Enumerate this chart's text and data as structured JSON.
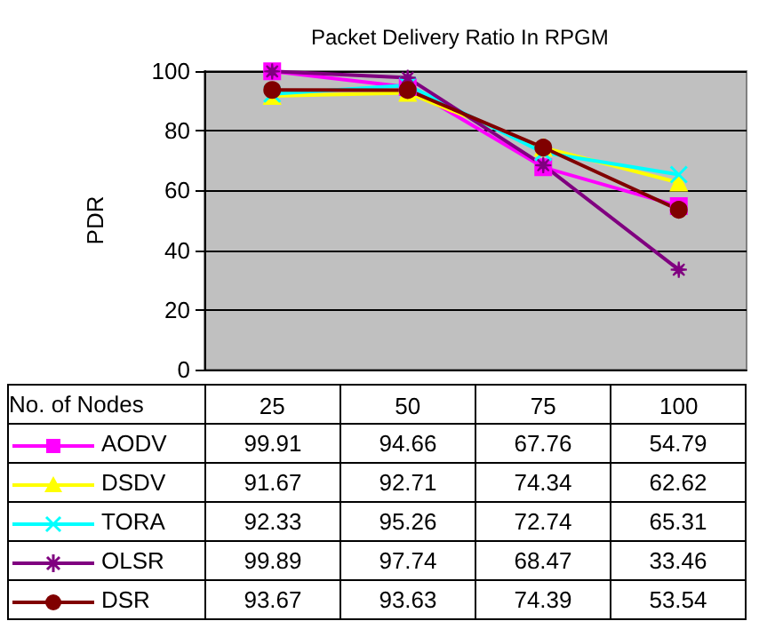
{
  "chart_data": {
    "type": "line",
    "title": "Packet Delivery Ratio In RPGM",
    "ylabel": "PDR",
    "legend_title": "No. of Nodes",
    "categories": [
      "25",
      "50",
      "75",
      "100"
    ],
    "series": [
      {
        "name": "AODV",
        "color": "#ff00ff",
        "marker": "square",
        "values": [
          99.91,
          94.66,
          67.76,
          54.79
        ]
      },
      {
        "name": "DSDV",
        "color": "#ffff00",
        "marker": "triangle",
        "values": [
          91.67,
          92.71,
          74.34,
          62.62
        ]
      },
      {
        "name": "TORA",
        "color": "#00ffff",
        "marker": "cross",
        "values": [
          92.33,
          95.26,
          72.74,
          65.31
        ]
      },
      {
        "name": "OLSR",
        "color": "#800080",
        "marker": "star",
        "values": [
          99.89,
          97.74,
          68.47,
          33.46
        ]
      },
      {
        "name": "DSR",
        "color": "#800000",
        "marker": "circle",
        "values": [
          93.67,
          93.63,
          74.39,
          53.54
        ]
      }
    ],
    "ylim": [
      0,
      100
    ],
    "yticks": [
      0,
      20,
      40,
      60,
      80,
      100
    ],
    "grid": "y",
    "data_labels": true,
    "legend": "bottom"
  }
}
